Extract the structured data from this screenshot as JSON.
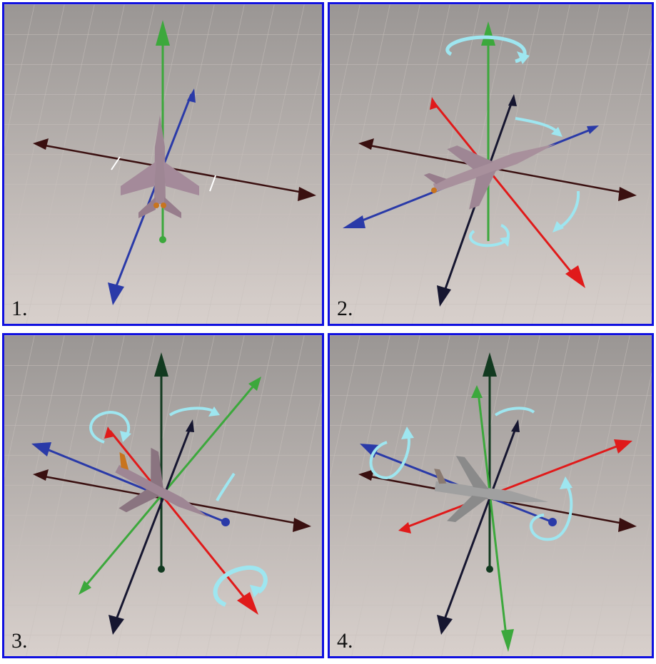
{
  "panels": [
    {
      "label": "1."
    },
    {
      "label": "2."
    },
    {
      "label": "3."
    },
    {
      "label": "4."
    }
  ],
  "colors": {
    "frame": "#1010e0",
    "x_axis": "#3a1010",
    "y_axis_green": "#3ca83c",
    "blue_axis": "#2a3aa8",
    "red_axis": "#e01a1a",
    "navy_axis": "#161630",
    "dark_green_axis": "#123a20",
    "rotation_arrow": "#9ee6f0",
    "grid_floor": "#b4aca8"
  }
}
